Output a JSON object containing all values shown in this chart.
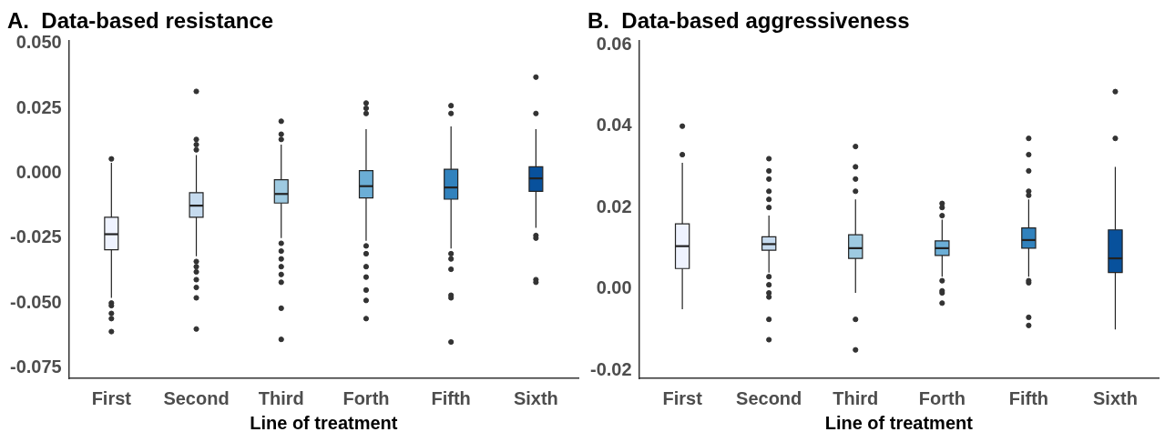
{
  "chart_data": [
    {
      "type": "box",
      "title": "A.  Data-based resistance",
      "xlabel": "Line of treatment",
      "categories": [
        "First",
        "Second",
        "Third",
        "Forth",
        "Fifth",
        "Sixth"
      ],
      "colors": [
        "#eff3ff",
        "#c6dbef",
        "#9ecae1",
        "#6baed6",
        "#3182bd",
        "#08519c"
      ],
      "ylim": [
        -0.079,
        0.051
      ],
      "yticks": [
        {
          "value": -0.075,
          "label": "-0.075"
        },
        {
          "value": -0.05,
          "label": "-0.050"
        },
        {
          "value": -0.025,
          "label": "-0.025"
        },
        {
          "value": 0,
          "label": "0.000"
        },
        {
          "value": 0.025,
          "label": "0.025"
        },
        {
          "value": 0.05,
          "label": "0.050"
        }
      ],
      "grid": false,
      "boxes": [
        {
          "low": -0.048,
          "q1": -0.0295,
          "median": -0.0235,
          "q3": -0.017,
          "high": 0.004,
          "outliers": [
            0.0055,
            -0.05,
            -0.051,
            -0.054,
            -0.056,
            -0.061
          ]
        },
        {
          "low": -0.032,
          "q1": -0.017,
          "median": -0.0125,
          "q3": -0.0075,
          "high": 0.007,
          "outliers": [
            0.0315,
            0.013,
            0.011,
            0.009,
            -0.034,
            -0.036,
            -0.038,
            -0.041,
            -0.044,
            -0.048,
            -0.06
          ]
        },
        {
          "low": -0.025,
          "q1": -0.0115,
          "median": -0.008,
          "q3": -0.0025,
          "high": 0.011,
          "outliers": [
            0.02,
            0.015,
            0.013,
            -0.027,
            -0.03,
            -0.033,
            -0.036,
            -0.039,
            -0.042,
            -0.052,
            -0.064
          ]
        },
        {
          "low": -0.026,
          "q1": -0.0095,
          "median": -0.005,
          "q3": 0.001,
          "high": 0.017,
          "outliers": [
            0.027,
            0.025,
            0.023,
            -0.028,
            -0.031,
            -0.036,
            -0.04,
            -0.045,
            -0.049,
            -0.056
          ]
        },
        {
          "low": -0.029,
          "q1": -0.01,
          "median": -0.0055,
          "q3": 0.0015,
          "high": 0.018,
          "outliers": [
            0.026,
            0.023,
            -0.031,
            -0.033,
            -0.037,
            -0.047,
            -0.048,
            -0.065
          ]
        },
        {
          "low": -0.021,
          "q1": -0.007,
          "median": -0.002,
          "q3": 0.0025,
          "high": 0.017,
          "outliers": [
            0.037,
            0.023,
            -0.024,
            -0.025,
            -0.041,
            -0.042
          ]
        }
      ]
    },
    {
      "type": "box",
      "title": "B.  Data-based aggressiveness",
      "xlabel": "Line of treatment",
      "categories": [
        "First",
        "Second",
        "Third",
        "Forth",
        "Fifth",
        "Sixth"
      ],
      "colors": [
        "#eff3ff",
        "#c6dbef",
        "#9ecae1",
        "#6baed6",
        "#3182bd",
        "#08519c"
      ],
      "ylim": [
        -0.022,
        0.061
      ],
      "yticks": [
        {
          "value": -0.02,
          "label": "-0.02"
        },
        {
          "value": 0,
          "label": "0.00"
        },
        {
          "value": 0.02,
          "label": "0.02"
        },
        {
          "value": 0.04,
          "label": "0.04"
        },
        {
          "value": 0.06,
          "label": "0.06"
        }
      ],
      "grid": false,
      "boxes": [
        {
          "low": -0.005,
          "q1": 0.005,
          "median": 0.0105,
          "q3": 0.016,
          "high": 0.031,
          "outliers": [
            0.033,
            0.04
          ]
        },
        {
          "low": 0.004,
          "q1": 0.0095,
          "median": 0.011,
          "q3": 0.0128,
          "high": 0.018,
          "outliers": [
            0.032,
            0.029,
            0.027,
            0.024,
            0.022,
            0.02,
            0.003,
            0.001,
            -0.001,
            -0.002,
            -0.0075,
            -0.0125
          ]
        },
        {
          "low": -0.001,
          "q1": 0.0075,
          "median": 0.01,
          "q3": 0.0133,
          "high": 0.022,
          "outliers": [
            0.035,
            0.03,
            0.027,
            0.024,
            -0.0075,
            -0.015
          ]
        },
        {
          "low": 0.003,
          "q1": 0.0082,
          "median": 0.01,
          "q3": 0.0118,
          "high": 0.017,
          "outliers": [
            0.021,
            0.02,
            0.018,
            0.002,
            -0.0005,
            -0.001,
            -0.0035
          ]
        },
        {
          "low": 0.003,
          "q1": 0.01,
          "median": 0.012,
          "q3": 0.015,
          "high": 0.022,
          "outliers": [
            0.037,
            0.033,
            0.029,
            0.024,
            0.023,
            0.002,
            0.0015,
            -0.007,
            -0.009
          ]
        },
        {
          "low": -0.01,
          "q1": 0.004,
          "median": 0.0075,
          "q3": 0.0145,
          "high": 0.03,
          "outliers": [
            0.037,
            0.0485
          ]
        }
      ]
    }
  ]
}
